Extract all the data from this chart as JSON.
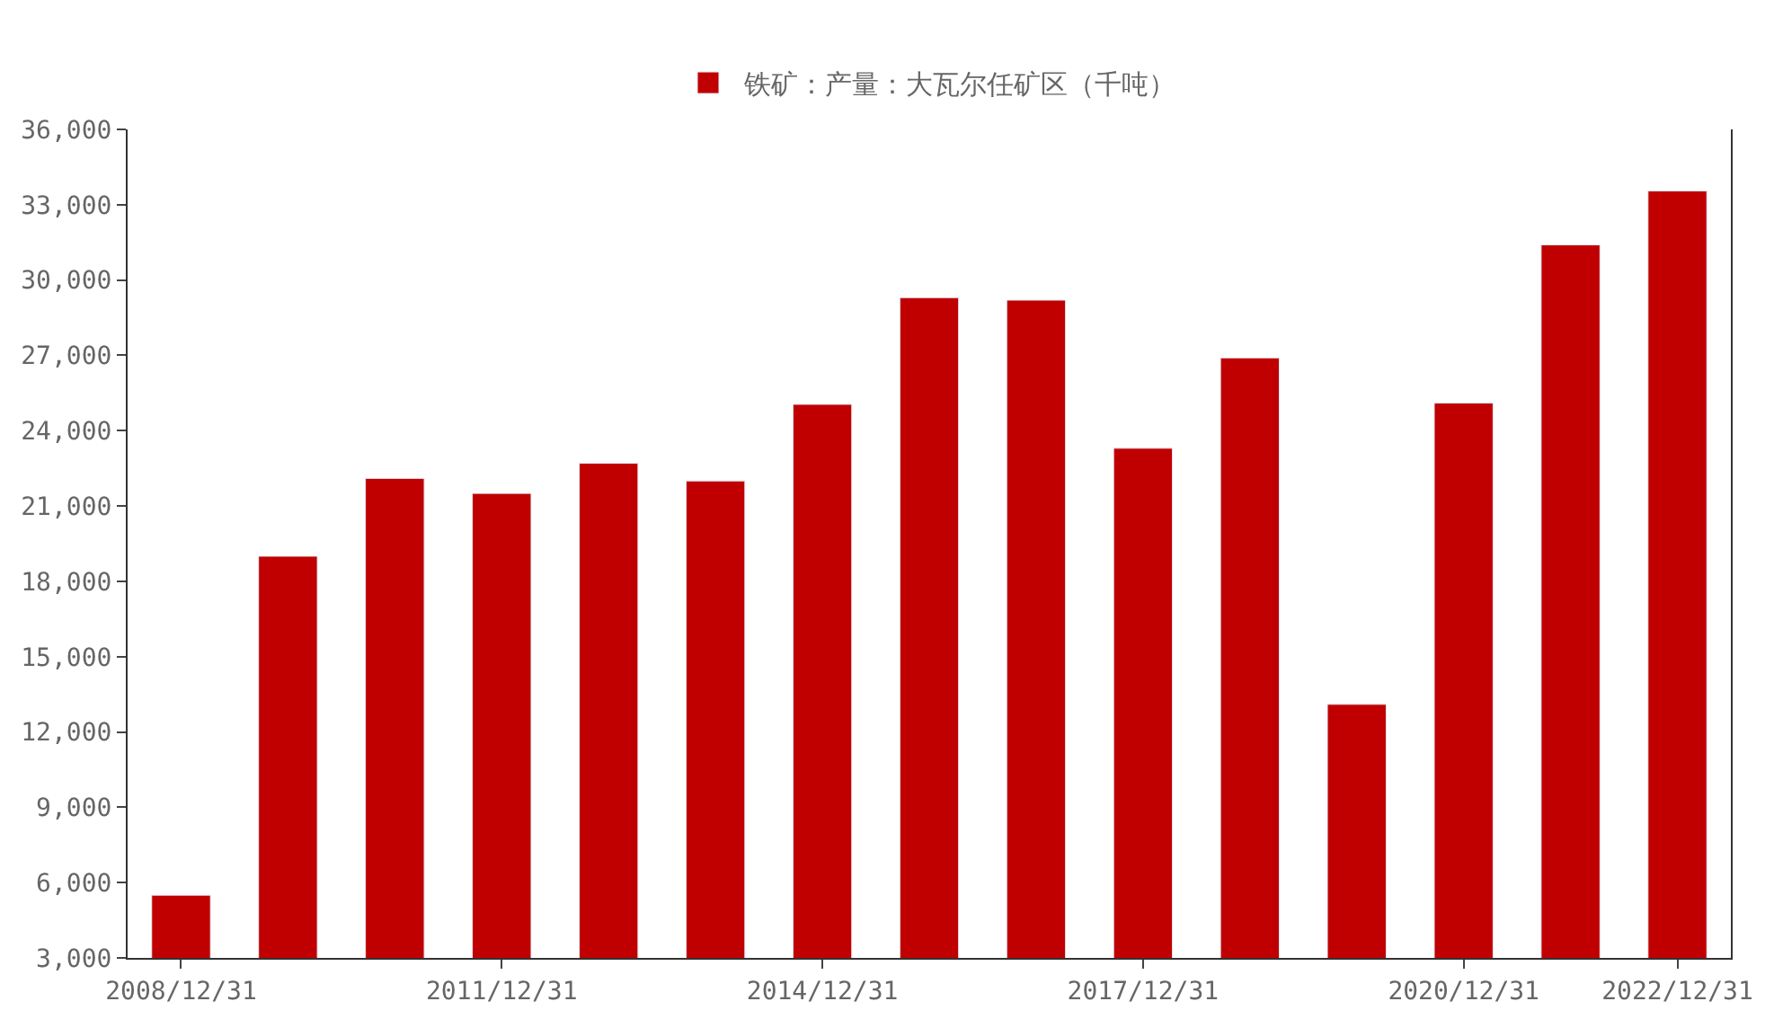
{
  "chart_data": {
    "type": "bar",
    "categories": [
      "2008/12/31",
      null,
      null,
      "2011/12/31",
      null,
      null,
      "2014/12/31",
      null,
      null,
      "2017/12/31",
      null,
      null,
      "2020/12/31",
      null,
      "2022/12/31"
    ],
    "series": [
      {
        "name": "铁矿：产量：大瓦尔任矿区（千吨）",
        "color": "#c00000",
        "values": [
          5500,
          19000,
          22100,
          21500,
          22700,
          22000,
          25050,
          29300,
          29200,
          23300,
          26900,
          13100,
          25100,
          31400,
          33550
        ]
      }
    ],
    "ylim": [
      3000,
      36000
    ],
    "yticks": [
      {
        "value": 3000,
        "label": "3,000"
      },
      {
        "value": 6000,
        "label": "6,000"
      },
      {
        "value": 9000,
        "label": "9,000"
      },
      {
        "value": 12000,
        "label": "12,000"
      },
      {
        "value": 15000,
        "label": "15,000"
      },
      {
        "value": 18000,
        "label": "18,000"
      },
      {
        "value": 21000,
        "label": "21,000"
      },
      {
        "value": 24000,
        "label": "24,000"
      },
      {
        "value": 27000,
        "label": "27,000"
      },
      {
        "value": 30000,
        "label": "30,000"
      },
      {
        "value": 33000,
        "label": "33,000"
      },
      {
        "value": 36000,
        "label": "36,000"
      }
    ],
    "legend": "top"
  }
}
